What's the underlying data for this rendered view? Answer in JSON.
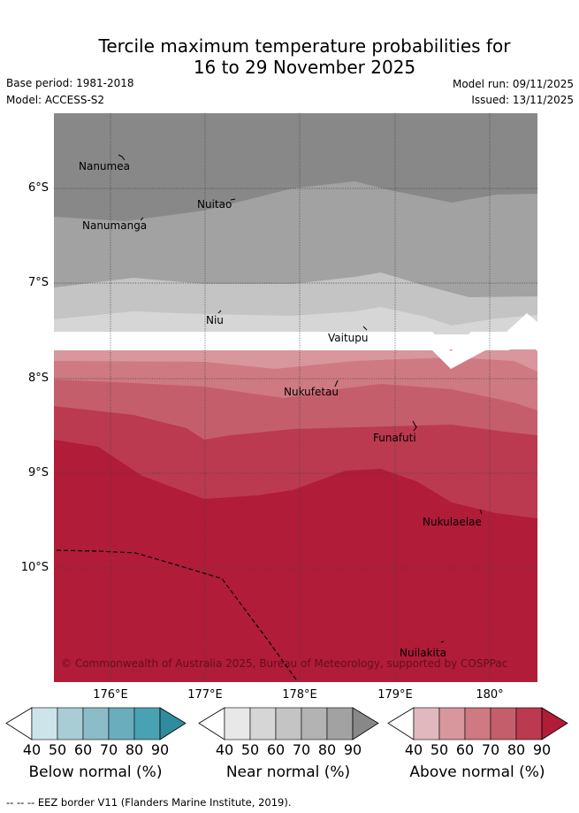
{
  "title_line1": "Tercile maximum temperature probabilities for",
  "title_line2": "16 to 29 November 2025",
  "meta": {
    "base_period": "Base period: 1981-2018",
    "model": "Model: ACCESS-S2",
    "model_run": "Model run: 09/11/2025",
    "issued": "Issued: 13/11/2025"
  },
  "lat_labels": [
    "6°S",
    "7°S",
    "8°S",
    "9°S",
    "10°S"
  ],
  "lon_labels": [
    "176°E",
    "177°E",
    "178°E",
    "179°E",
    "180°"
  ],
  "places": {
    "nanumea": "Nanumea",
    "nuitao": "Nuitao",
    "nanumanga": "Nanumanga",
    "niu": "Niu",
    "vaitupu": "Vaitupu",
    "nukufetau": "Nukufetau",
    "funafuti": "Funafuti",
    "nukulaelae": "Nukulaelae",
    "nuilakita": "Nuilakita"
  },
  "copyright": "© Commonwealth of Australia 2025, Bureau of Meteorology, supported by COSPPac",
  "colorbar_ticks": [
    "40",
    "50",
    "60",
    "70",
    "80",
    "90"
  ],
  "colorbars": {
    "below": {
      "label": "Below normal (%)",
      "colors": [
        "#ffffff",
        "#cde4ea",
        "#a9cdd4",
        "#8bbcc7",
        "#6aaebd",
        "#49a2b2",
        "#2e8c9e"
      ]
    },
    "near": {
      "label": "Near normal (%)",
      "colors": [
        "#ffffff",
        "#e8e8e8",
        "#d6d6d6",
        "#c4c4c4",
        "#b3b3b3",
        "#a2a2a2",
        "#888888"
      ]
    },
    "above": {
      "label": "Above normal (%)",
      "colors": [
        "#ffffff",
        "#e2b8bf",
        "#d8969d",
        "#cf7982",
        "#c55e6b",
        "#bb3a4f",
        "#b11c38"
      ]
    }
  },
  "footer": "--  --  -- EEZ border V11 (Flanders Marine Institute, 2019)."
}
